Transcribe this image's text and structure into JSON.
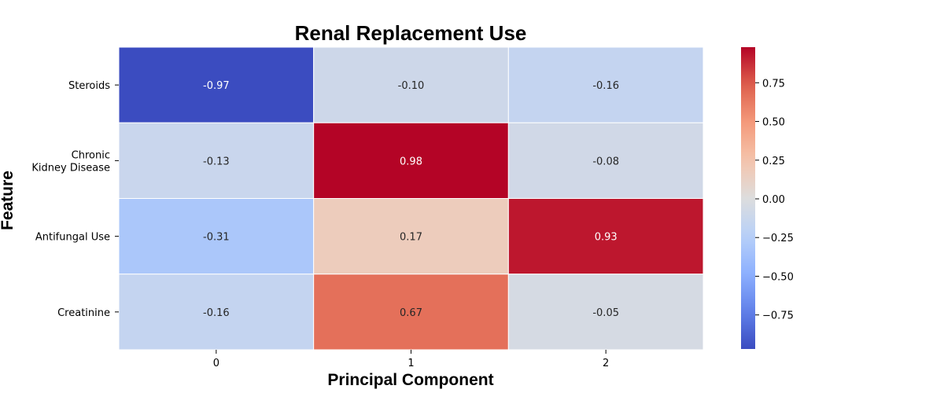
{
  "chart_data": {
    "type": "heatmap",
    "title": "Renal Replacement Use",
    "xlabel": "Principal Component",
    "ylabel": "Feature",
    "x_categories": [
      "0",
      "1",
      "2"
    ],
    "y_categories": [
      "Steroids",
      "Chronic\nKidney Disease",
      "Antifungal Use",
      "Creatinine"
    ],
    "values": [
      [
        -0.97,
        -0.1,
        -0.16
      ],
      [
        -0.13,
        0.98,
        -0.08
      ],
      [
        -0.31,
        0.17,
        0.93
      ],
      [
        -0.16,
        0.67,
        -0.05
      ]
    ],
    "value_labels": [
      [
        "-0.97",
        "-0.10",
        "-0.16"
      ],
      [
        "-0.13",
        "0.98",
        "-0.08"
      ],
      [
        "-0.31",
        "0.17",
        "0.93"
      ],
      [
        "-0.16",
        "0.67",
        "-0.05"
      ]
    ],
    "colormap": "coolwarm",
    "vmin": -0.97,
    "vmax": 0.98,
    "colorbar_ticks": [
      0.75,
      0.5,
      0.25,
      0.0,
      -0.25,
      -0.5,
      -0.75
    ],
    "colorbar_tick_labels": [
      "0.75",
      "0.50",
      "0.25",
      "0.00",
      "−0.25",
      "−0.50",
      "−0.75"
    ],
    "annotated": true,
    "legend": "colorbar-right"
  }
}
